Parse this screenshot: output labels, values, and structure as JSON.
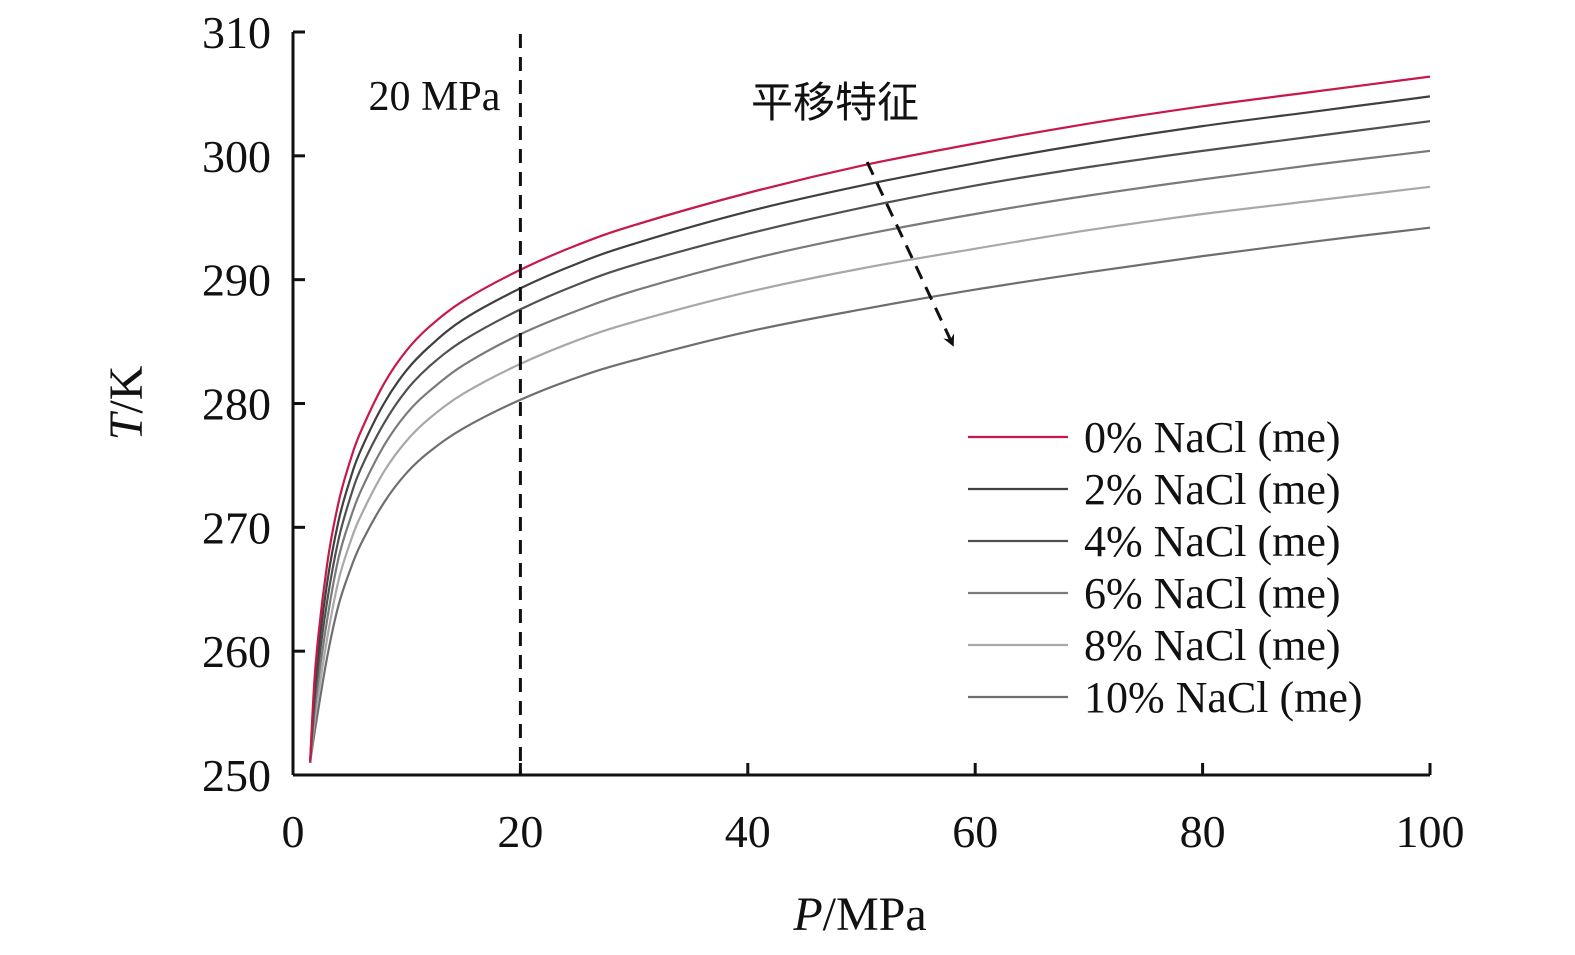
{
  "chart_data": {
    "type": "line",
    "title": "",
    "xlabel": {
      "var": "P",
      "unit": "/MPa"
    },
    "ylabel": {
      "var": "T",
      "unit": "/K"
    },
    "xlim": [
      0,
      100
    ],
    "ylim": [
      250,
      310
    ],
    "xticks": [
      "0",
      "20",
      "40",
      "60",
      "80",
      "100"
    ],
    "yticks": [
      "250",
      "260",
      "270",
      "280",
      "290",
      "300",
      "310"
    ],
    "grid": false,
    "legend_position": "right",
    "x": [
      1.5,
      2,
      3,
      4,
      5,
      6,
      8,
      10,
      12,
      15,
      20,
      25,
      30,
      40,
      50,
      60,
      70,
      80,
      90,
      100
    ],
    "series": [
      {
        "name": "0% NaCl (me)",
        "color": "#c8174a",
        "values": [
          251.0,
          259.0,
          267.0,
          272.0,
          275.3,
          277.8,
          281.6,
          284.3,
          286.2,
          288.3,
          290.8,
          292.8,
          294.4,
          297.0,
          299.2,
          301.0,
          302.6,
          304.0,
          305.2,
          306.4
        ]
      },
      {
        "name": "2% NaCl (me)",
        "color": "#3f3f3f",
        "values": [
          251.0,
          258.0,
          265.5,
          270.5,
          273.8,
          276.3,
          280.0,
          282.7,
          284.6,
          286.8,
          289.3,
          291.3,
          292.9,
          295.5,
          297.6,
          299.4,
          301.0,
          302.4,
          303.6,
          304.8
        ]
      },
      {
        "name": "4% NaCl (me)",
        "color": "#505050",
        "values": [
          251.0,
          257.0,
          264.0,
          269.0,
          272.3,
          274.8,
          278.4,
          281.1,
          283.0,
          285.1,
          287.6,
          289.6,
          291.2,
          293.7,
          295.8,
          297.6,
          299.1,
          300.4,
          301.6,
          302.8
        ]
      },
      {
        "name": "6% NaCl (me)",
        "color": "#7a7a7a",
        "values": [
          251.0,
          256.0,
          262.5,
          267.5,
          270.6,
          273.0,
          276.6,
          279.2,
          281.0,
          283.1,
          285.6,
          287.5,
          289.1,
          291.6,
          293.6,
          295.3,
          296.8,
          298.1,
          299.3,
          300.4
        ]
      },
      {
        "name": "8% NaCl (me)",
        "color": "#a8a8a8",
        "values": [
          251.0,
          255.0,
          261.0,
          265.7,
          268.7,
          271.0,
          274.5,
          277.0,
          278.8,
          280.8,
          283.2,
          285.1,
          286.6,
          289.0,
          290.9,
          292.5,
          294.0,
          295.3,
          296.4,
          297.5
        ]
      },
      {
        "name": "10% NaCl (me)",
        "color": "#6e6e6e",
        "values": [
          251.0,
          254.0,
          259.5,
          263.7,
          266.5,
          268.7,
          272.0,
          274.4,
          276.1,
          278.0,
          280.3,
          282.1,
          283.5,
          285.8,
          287.6,
          289.2,
          290.6,
          291.9,
          293.1,
          294.2
        ]
      }
    ],
    "annotations": {
      "vline_x": 20,
      "vline_label": "20 MPa",
      "arrow_label": "平移特征",
      "arrow_start": [
        50.5,
        299.5
      ],
      "arrow_end": [
        58,
        284.8
      ]
    }
  }
}
